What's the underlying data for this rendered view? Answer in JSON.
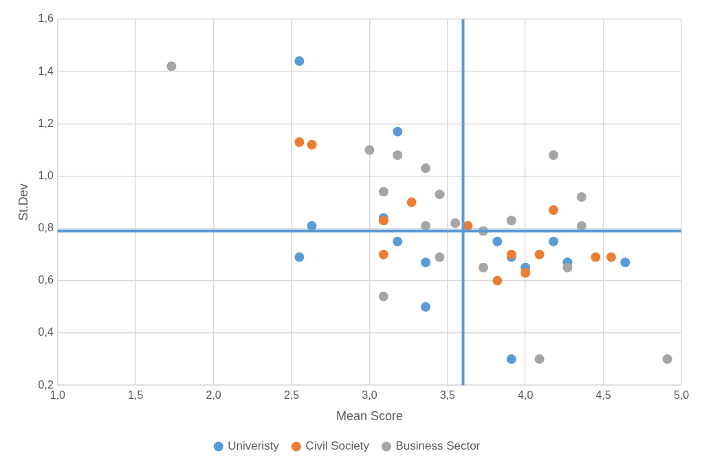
{
  "chart_data": {
    "type": "scatter",
    "xlabel": "Mean Score",
    "ylabel": "St.Dev",
    "xlim": [
      1,
      5
    ],
    "xticks": [
      {
        "value": 1,
        "label": "1,0"
      },
      {
        "value": 1.5,
        "label": "1,5"
      },
      {
        "value": 2,
        "label": "2,0"
      },
      {
        "value": 2.5,
        "label": "2,5"
      },
      {
        "value": 3,
        "label": "3,0"
      },
      {
        "value": 3.5,
        "label": "3,5"
      },
      {
        "value": 4,
        "label": "4,0"
      },
      {
        "value": 4.5,
        "label": "4,5"
      },
      {
        "value": 5,
        "label": "5,0"
      }
    ],
    "ylim": [
      0.2,
      1.6
    ],
    "yticks": [
      {
        "value": 0.2,
        "label": "0,2"
      },
      {
        "value": 0.4,
        "label": "0,4"
      },
      {
        "value": 0.6,
        "label": "0,6"
      },
      {
        "value": 0.8,
        "label": "0,8"
      },
      {
        "value": 1,
        "label": "1,0"
      },
      {
        "value": 1.2,
        "label": "1,2"
      },
      {
        "value": 1.4,
        "label": "1,4"
      },
      {
        "value": 1.6,
        "label": "1,6"
      }
    ],
    "grid": true,
    "legend": "bottom",
    "marker": "circle",
    "ref_lines": [
      {
        "axis": "x",
        "value": 3.6,
        "color": "#5b9bd5"
      },
      {
        "axis": "y",
        "value": 0.79,
        "color": "#5b9bd5"
      }
    ],
    "series": [
      {
        "name": "Univeristy",
        "color": "#5b9bd5",
        "x": [
          2.55,
          3.18,
          2.63,
          3.09,
          3.18,
          2.55,
          3.36,
          3.36,
          3.82,
          3.91,
          4.0,
          4.18,
          4.27,
          4.64,
          3.91
        ],
        "values": [
          1.44,
          1.17,
          0.81,
          0.84,
          0.75,
          0.69,
          0.67,
          0.5,
          0.75,
          0.69,
          0.65,
          0.75,
          0.67,
          0.67,
          0.3
        ]
      },
      {
        "name": "Civil Society",
        "color": "#ed7d31",
        "x": [
          2.55,
          2.63,
          3.09,
          3.27,
          3.09,
          3.63,
          4.18,
          3.91,
          4.09,
          3.82,
          4.0,
          4.45,
          4.55
        ],
        "values": [
          1.13,
          1.12,
          0.83,
          0.9,
          0.7,
          0.81,
          0.87,
          0.7,
          0.7,
          0.6,
          0.63,
          0.69,
          0.69
        ]
      },
      {
        "name": "Business Sector",
        "color": "#a5a5a5",
        "x": [
          1.73,
          3.0,
          3.18,
          3.36,
          3.09,
          3.45,
          4.18,
          4.36,
          3.36,
          3.55,
          3.73,
          3.91,
          4.36,
          3.45,
          3.73,
          4.27,
          3.09,
          4.09,
          4.91
        ],
        "values": [
          1.42,
          1.1,
          1.08,
          1.03,
          0.94,
          0.93,
          1.08,
          0.92,
          0.81,
          0.82,
          0.79,
          0.83,
          0.81,
          0.69,
          0.65,
          0.65,
          0.54,
          0.3,
          0.3
        ]
      }
    ]
  }
}
